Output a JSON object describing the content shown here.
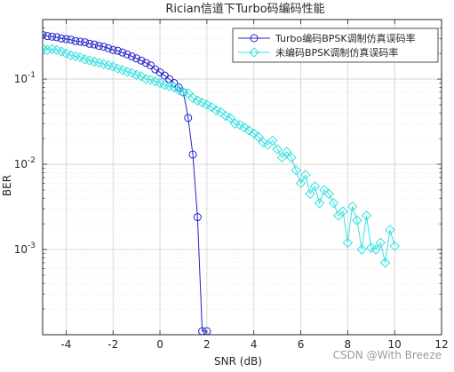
{
  "chart_data": {
    "type": "line",
    "title": "Rician信道下Turbo码编码性能",
    "xlabel": "SNR (dB)",
    "ylabel": "BER",
    "xlim": [
      -5,
      12
    ],
    "ylim": [
      0.0001,
      0.5
    ],
    "yscale": "log",
    "xticks": [
      -4,
      -2,
      0,
      2,
      4,
      6,
      8,
      10,
      12
    ],
    "xtick_labels": [
      "-4",
      "-2",
      "0",
      "2",
      "4",
      "6",
      "8",
      "10",
      "12"
    ],
    "yticks": [
      0.1,
      0.01,
      0.001
    ],
    "ytick_base": "10",
    "ytick_exponents": [
      "-1",
      "-2",
      "-3"
    ],
    "grid": true,
    "legend_position": "top-right",
    "series": [
      {
        "name": "Turbo编码BPSK调制仿真误码率",
        "color": "#2323cc",
        "marker": "circle",
        "x": [
          -5,
          -4.8,
          -4.6,
          -4.4,
          -4.2,
          -4,
          -3.8,
          -3.6,
          -3.4,
          -3.2,
          -3,
          -2.8,
          -2.6,
          -2.4,
          -2.2,
          -2,
          -1.8,
          -1.6,
          -1.4,
          -1.2,
          -1,
          -0.8,
          -0.6,
          -0.4,
          -0.2,
          0,
          0.2,
          0.4,
          0.6,
          0.8,
          1,
          1.2,
          1.4,
          1.6,
          1.8,
          2
        ],
        "y": [
          0.33,
          0.32,
          0.315,
          0.31,
          0.3,
          0.295,
          0.29,
          0.28,
          0.275,
          0.27,
          0.26,
          0.255,
          0.245,
          0.24,
          0.23,
          0.22,
          0.215,
          0.205,
          0.195,
          0.185,
          0.175,
          0.165,
          0.155,
          0.145,
          0.13,
          0.12,
          0.11,
          0.1,
          0.09,
          0.08,
          0.07,
          0.035,
          0.013,
          0.0024,
          0.00011,
          0.00011
        ]
      },
      {
        "name": "未编码BPSK调制仿真误码率",
        "color": "#33e0e0",
        "marker": "diamond",
        "x": [
          -5,
          -4.8,
          -4.6,
          -4.4,
          -4.2,
          -4,
          -3.8,
          -3.6,
          -3.4,
          -3.2,
          -3,
          -2.8,
          -2.6,
          -2.4,
          -2.2,
          -2,
          -1.8,
          -1.6,
          -1.4,
          -1.2,
          -1,
          -0.8,
          -0.6,
          -0.4,
          -0.2,
          0,
          0.2,
          0.4,
          0.6,
          0.8,
          1,
          1.2,
          1.4,
          1.6,
          1.8,
          2,
          2.2,
          2.4,
          2.6,
          2.8,
          3,
          3.2,
          3.4,
          3.6,
          3.8,
          4,
          4.2,
          4.4,
          4.6,
          4.8,
          5,
          5.2,
          5.4,
          5.6,
          5.8,
          6,
          6.2,
          6.4,
          6.6,
          6.8,
          7,
          7.2,
          7.4,
          7.6,
          7.8,
          8,
          8.2,
          8.4,
          8.6,
          8.8,
          9,
          9.2,
          9.4,
          9.6,
          9.8,
          10
        ],
        "y": [
          0.23,
          0.22,
          0.225,
          0.22,
          0.21,
          0.2,
          0.19,
          0.185,
          0.18,
          0.17,
          0.165,
          0.16,
          0.155,
          0.15,
          0.145,
          0.14,
          0.133,
          0.128,
          0.122,
          0.118,
          0.112,
          0.108,
          0.1,
          0.098,
          0.094,
          0.09,
          0.085,
          0.082,
          0.08,
          0.074,
          0.07,
          0.068,
          0.06,
          0.056,
          0.053,
          0.05,
          0.047,
          0.043,
          0.041,
          0.037,
          0.035,
          0.03,
          0.029,
          0.027,
          0.025,
          0.023,
          0.021,
          0.018,
          0.017,
          0.019,
          0.015,
          0.012,
          0.014,
          0.012,
          0.0085,
          0.006,
          0.0075,
          0.0045,
          0.0055,
          0.0035,
          0.005,
          0.0045,
          0.0035,
          0.0025,
          0.0028,
          0.0012,
          0.0032,
          0.0022,
          0.001,
          0.0025,
          0.00105,
          0.001,
          0.0012,
          0.0007,
          0.0017,
          0.0011
        ]
      }
    ]
  },
  "watermark": "CSDN @With Breeze"
}
